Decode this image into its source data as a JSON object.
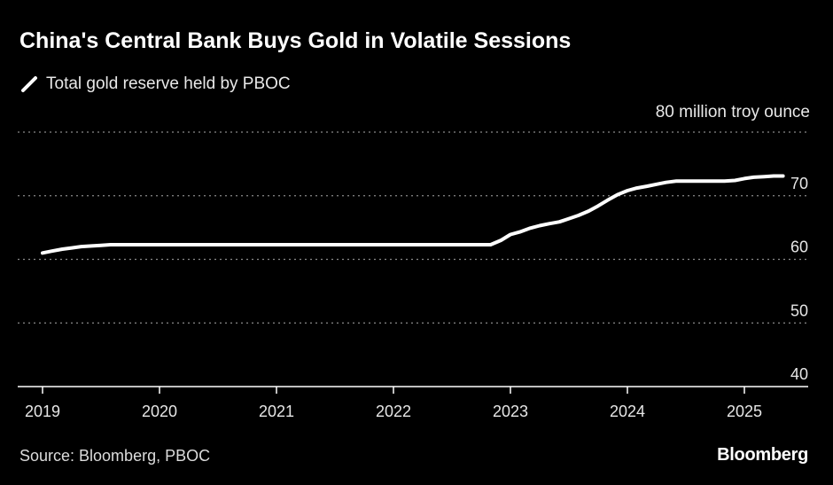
{
  "title": "China's Central Bank Buys Gold in Volatile Sessions",
  "legend_label": "Total gold reserve held by PBOC",
  "unit_label": "80 million troy ounce",
  "source": "Source: Bloomberg, PBOC",
  "brand": "Bloomberg",
  "colors": {
    "background": "#000000",
    "line": "#ffffff",
    "grid": "#8a8a8a",
    "axis": "#ffffff"
  },
  "chart_data": {
    "type": "line",
    "title": "China's Central Bank Buys Gold in Volatile Sessions",
    "xlabel": "",
    "ylabel": "80 million troy ounce",
    "xlim": [
      2019.0,
      2026.3
    ],
    "ylim": [
      40,
      80
    ],
    "y_ticks": [
      40,
      50,
      60,
      70
    ],
    "x_ticks": [
      "2019",
      "2020",
      "2021",
      "2022",
      "2023",
      "2024",
      "2025"
    ],
    "grid": true,
    "legend_position": "top-left",
    "series": [
      {
        "name": "Total gold reserve held by PBOC",
        "points": [
          [
            2019.0,
            61.0
          ],
          [
            2019.08,
            61.3
          ],
          [
            2019.17,
            61.6
          ],
          [
            2019.25,
            61.8
          ],
          [
            2019.33,
            62.0
          ],
          [
            2019.42,
            62.1
          ],
          [
            2019.5,
            62.2
          ],
          [
            2019.58,
            62.3
          ],
          [
            2019.67,
            62.3
          ],
          [
            2020.0,
            62.3
          ],
          [
            2021.0,
            62.3
          ],
          [
            2022.0,
            62.3
          ],
          [
            2022.83,
            62.3
          ],
          [
            2022.92,
            63.0
          ],
          [
            2023.0,
            63.9
          ],
          [
            2023.08,
            64.3
          ],
          [
            2023.17,
            64.9
          ],
          [
            2023.25,
            65.3
          ],
          [
            2023.33,
            65.6
          ],
          [
            2023.42,
            65.9
          ],
          [
            2023.5,
            66.4
          ],
          [
            2023.58,
            66.9
          ],
          [
            2023.67,
            67.6
          ],
          [
            2023.75,
            68.4
          ],
          [
            2023.83,
            69.3
          ],
          [
            2023.92,
            70.2
          ],
          [
            2024.0,
            70.8
          ],
          [
            2024.08,
            71.2
          ],
          [
            2024.17,
            71.5
          ],
          [
            2024.25,
            71.8
          ],
          [
            2024.33,
            72.1
          ],
          [
            2024.42,
            72.3
          ],
          [
            2024.5,
            72.3
          ],
          [
            2024.83,
            72.3
          ],
          [
            2024.92,
            72.4
          ],
          [
            2025.0,
            72.7
          ],
          [
            2025.08,
            72.9
          ],
          [
            2025.17,
            73.0
          ],
          [
            2025.25,
            73.1
          ],
          [
            2025.33,
            73.1
          ]
        ]
      }
    ]
  }
}
